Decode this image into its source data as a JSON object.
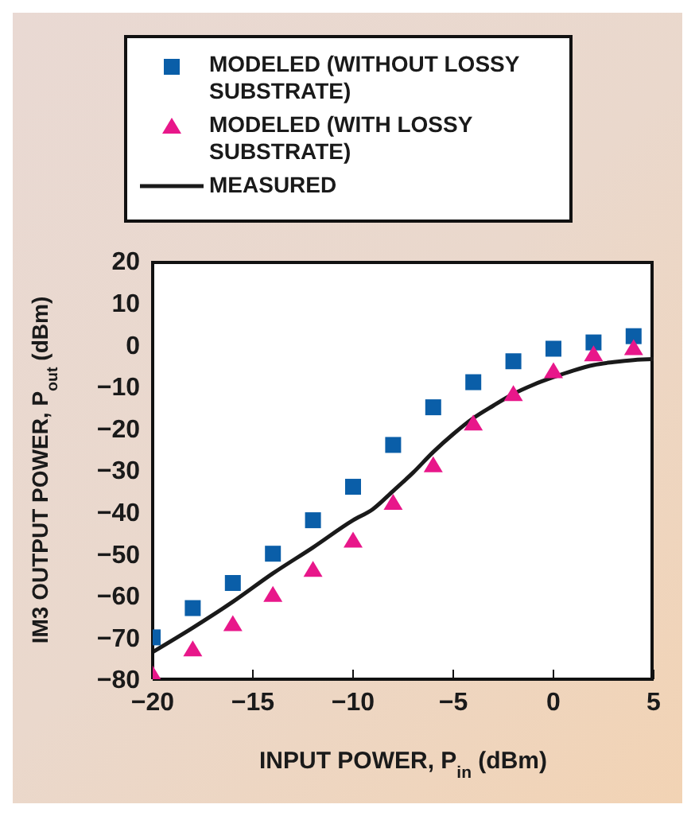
{
  "chart_data": {
    "type": "scatter",
    "xlabel": "INPUT POWER, P$_{in}$ (dBm)",
    "ylabel": "IM3 OUTPUT POWER, P$_{out}$ (dBm)",
    "xlim": [
      -20,
      5
    ],
    "xticks": [
      -20,
      -15,
      -10,
      -5,
      0,
      5
    ],
    "ylim": [
      -80,
      20
    ],
    "yticks": [
      -80,
      -70,
      -60,
      -50,
      -40,
      -30,
      -20,
      -10,
      0,
      10,
      20
    ],
    "legend": "top",
    "series": [
      {
        "name": "MODELED (WITHOUT LOSSY SUBSTRATE)",
        "marker": "square",
        "color": "#0a5ea8",
        "x": [
          -20,
          -18,
          -16,
          -14,
          -12,
          -10,
          -8,
          -6,
          -4,
          -2,
          0,
          2,
          4
        ],
        "values": [
          -70,
          -63,
          -57,
          -50,
          -42,
          -34,
          -24,
          -15,
          -9,
          -4,
          -1,
          0.5,
          2
        ]
      },
      {
        "name": "MODELED (WITH LOSSY SUBSTRATE)",
        "marker": "triangle",
        "color": "#e8178a",
        "x": [
          -20,
          -18,
          -16,
          -14,
          -12,
          -10,
          -8,
          -6,
          -4,
          -2,
          0,
          2,
          4
        ],
        "values": [
          -79,
          -73,
          -67,
          -60,
          -54,
          -47,
          -38,
          -29,
          -19,
          -12,
          -6.5,
          -2.5,
          -1
        ]
      },
      {
        "name": "MEASURED",
        "type": "line",
        "marker": "none",
        "line_style": "solid",
        "color": "#1a1a1a",
        "x": [
          -20,
          -18,
          -16,
          -14,
          -12,
          -10,
          -9,
          -8,
          -7,
          -6,
          -5,
          -4,
          -3,
          -2,
          -1,
          0,
          1,
          2,
          3,
          4,
          5
        ],
        "values": [
          -73.5,
          -67.7,
          -61.5,
          -54.7,
          -48.5,
          -42,
          -39.3,
          -35,
          -30.6,
          -25.7,
          -21.4,
          -17.6,
          -14.6,
          -11.8,
          -9.6,
          -7.8,
          -6.2,
          -4.9,
          -4.2,
          -3.7,
          -3.5
        ]
      }
    ]
  }
}
